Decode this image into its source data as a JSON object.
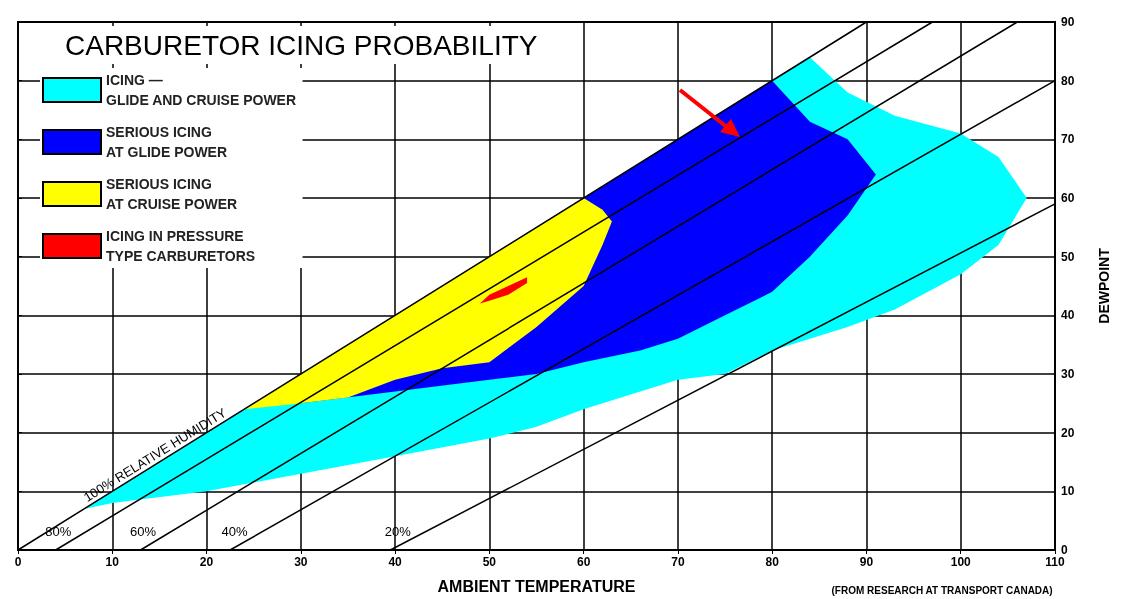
{
  "chart_data": {
    "type": "area",
    "title": "CARBURETOR ICING PROBABILITY",
    "xlabel": "AMBIENT TEMPERATURE",
    "ylabel": "DEWPOINT",
    "annotations": [
      "(FROM RESEARCH AT TRANSPORT CANADA)"
    ],
    "xlim": [
      0,
      110
    ],
    "xticks": [
      0,
      10,
      20,
      30,
      40,
      50,
      60,
      70,
      80,
      90,
      100,
      110
    ],
    "ylim": [
      0,
      90
    ],
    "yticks": [
      0,
      10,
      20,
      30,
      40,
      50,
      60,
      70,
      80,
      90
    ],
    "grid": true,
    "legend": "top left",
    "marker": "none",
    "series": [
      {
        "type": "area",
        "name": "ICING —\nGLIDE AND CRUISE POWER",
        "color": "#00ffff",
        "x": [
          7,
          10,
          20,
          30,
          40,
          50,
          55,
          60,
          66,
          70,
          75,
          80,
          84,
          88,
          93,
          100,
          104,
          107,
          104,
          100,
          93,
          88,
          84,
          80,
          75,
          70,
          66,
          60,
          55,
          50,
          40,
          30,
          20,
          10
        ],
        "values": [
          7,
          10,
          20,
          30,
          40,
          50,
          55,
          60,
          66,
          70,
          75,
          80,
          84,
          78,
          74,
          71,
          67,
          60,
          52,
          47,
          41,
          38,
          36,
          34,
          30,
          29,
          27,
          24,
          21,
          19,
          16,
          13,
          10,
          8
        ]
      },
      {
        "type": "area",
        "name": "SERIOUS ICING\nAT GLIDE POWER",
        "color": "#0000ff",
        "x": [
          30,
          40,
          50,
          55,
          60,
          66,
          70,
          75,
          80,
          84,
          88,
          91,
          88,
          84,
          80,
          75,
          70,
          66,
          60,
          55,
          50,
          40,
          30
        ],
        "values": [
          30,
          40,
          50,
          55,
          60,
          66,
          70,
          75,
          80,
          73,
          70,
          64,
          57,
          50,
          44,
          40,
          36,
          34,
          32,
          30,
          29,
          27,
          25
        ]
      },
      {
        "type": "area",
        "name": "SERIOUS ICING\nAT CRUISE POWER",
        "color": "#ffff00",
        "x": [
          24,
          30,
          35,
          40,
          45,
          50,
          55,
          60,
          62,
          63,
          62,
          60,
          55,
          50,
          45,
          40,
          35,
          30
        ],
        "values": [
          24,
          30,
          35,
          40,
          45,
          50,
          55,
          60,
          58,
          56,
          52,
          45,
          38,
          32,
          31,
          29,
          26,
          25
        ]
      },
      {
        "type": "area",
        "name": "ICING IN PRESSURE\nTYPE CARBURETORS",
        "color": "#ff0000",
        "x": [
          49,
          50,
          52,
          54,
          54,
          52,
          50
        ],
        "values": [
          42,
          43.5,
          45,
          46.5,
          45.5,
          43.5,
          42.5
        ]
      },
      {
        "type": "line",
        "name": "100% RELATIVE HUMIDITY",
        "color": "#000000",
        "x": [
          0,
          90
        ],
        "values": [
          0,
          90
        ]
      },
      {
        "type": "line",
        "name": "80%",
        "color": "#000000",
        "x": [
          4,
          97
        ],
        "values": [
          0,
          90
        ]
      },
      {
        "type": "line",
        "name": "60%",
        "color": "#000000",
        "x": [
          13,
          106
        ],
        "values": [
          0,
          90
        ]
      },
      {
        "type": "line",
        "name": "40%",
        "color": "#000000",
        "x": [
          22.5,
          110
        ],
        "values": [
          0,
          80
        ]
      },
      {
        "type": "line",
        "name": "20%",
        "color": "#000000",
        "x": [
          39.5,
          110
        ],
        "values": [
          0,
          59
        ]
      }
    ]
  }
}
